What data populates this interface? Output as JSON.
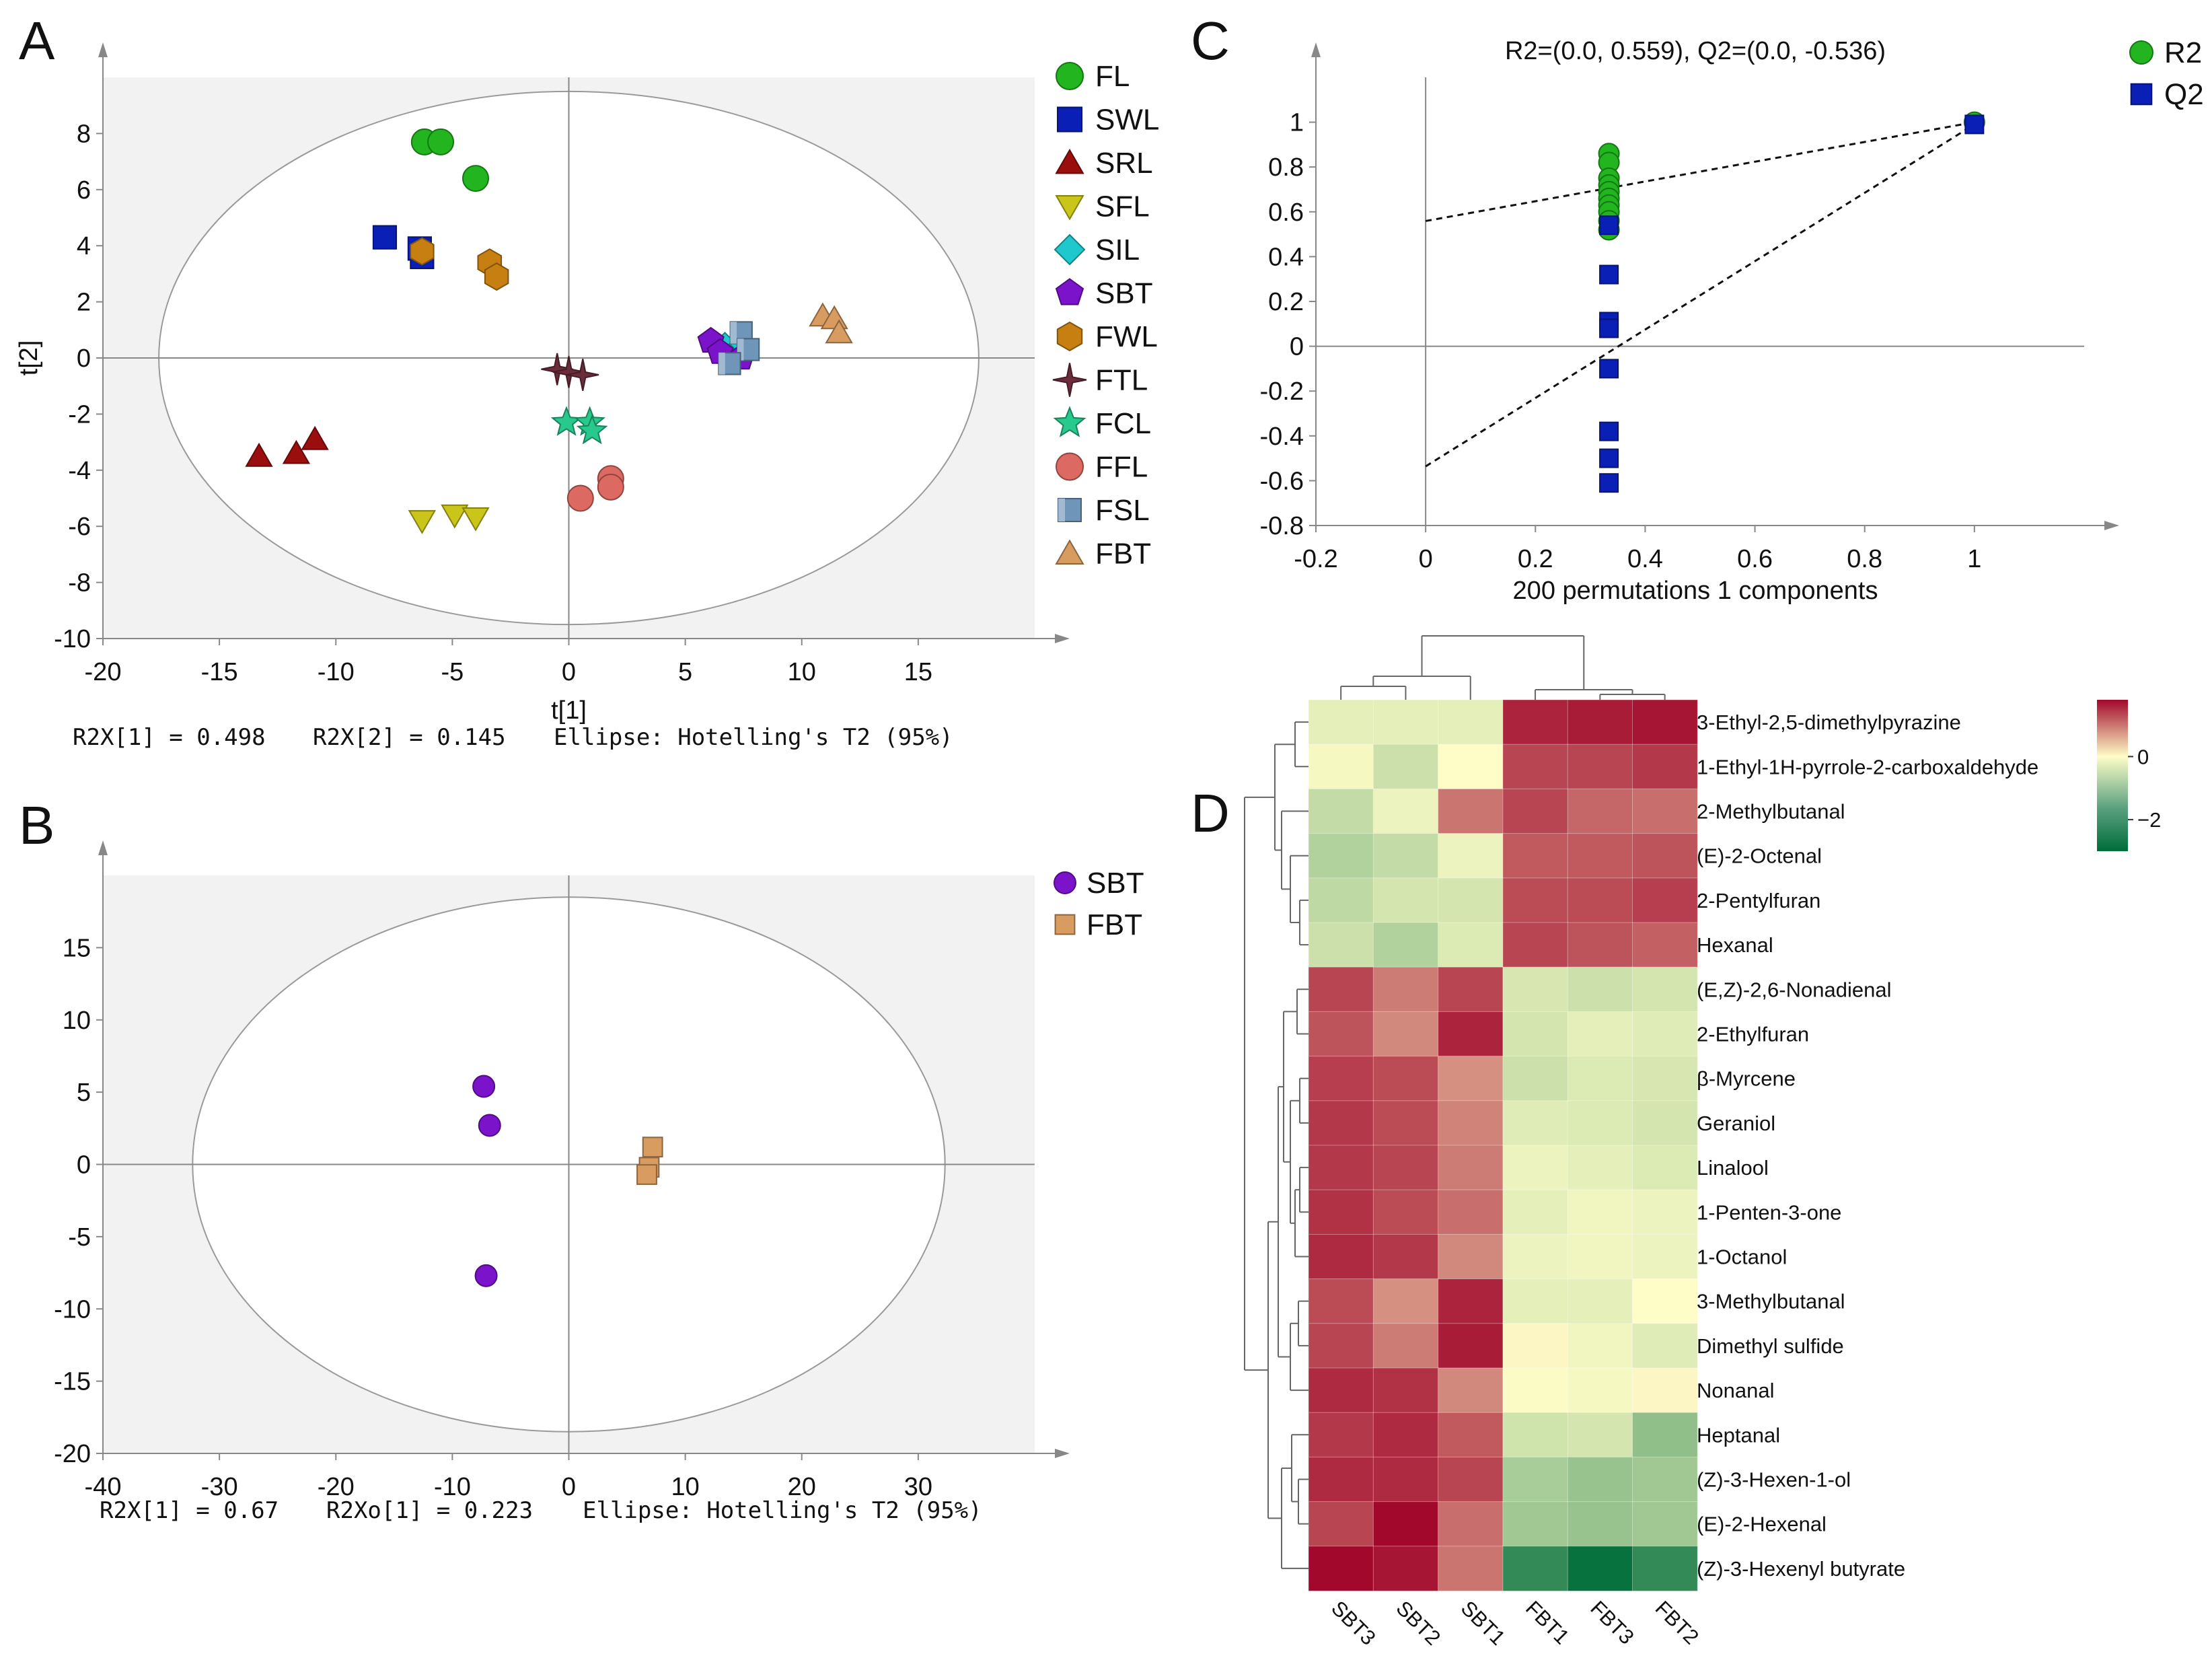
{
  "colors": {
    "FL": "#22b51f",
    "SWL": "#0a1fb5",
    "SRL": "#9b0e0e",
    "SFL": "#c9c51a",
    "SIL": "#1ec8cc",
    "SBT": "#7a13c9",
    "FWL": "#c77f12",
    "FTL": "#6b2c3c",
    "FCL": "#27c98c",
    "FFL": "#dd6a62",
    "FSL": "#6f95b8",
    "FBT": "#d89c61",
    "R2": "#22b51f",
    "Q2": "#0a1fb5",
    "heat_low": "#006d3a",
    "heat_mid": "#fefdc7",
    "heat_high": "#a1082b"
  },
  "chart_data": [
    {
      "panel": "A",
      "type": "scatter",
      "xlabel": "t[1]",
      "ylabel": "t[2]",
      "xlim": [
        -20,
        20
      ],
      "ylim": [
        -10,
        10
      ],
      "xticks": [
        "-20",
        "-15",
        "-10",
        "-5",
        "0",
        "5",
        "10",
        "15"
      ],
      "yticks": [
        "8",
        "6",
        "4",
        "2",
        "0",
        "-2",
        "-4",
        "-6",
        "-8",
        "-10"
      ],
      "ellipse": {
        "rx": 17.6,
        "ry": 9.5
      },
      "caption": {
        "r2x1": "R2X[1] = 0.498",
        "r2x2": "R2X[2] = 0.145",
        "ellipse": "Ellipse: Hotelling's T2 (95%)"
      },
      "legend": [
        "FL",
        "SWL",
        "SRL",
        "SFL",
        "SIL",
        "SBT",
        "FWL",
        "FTL",
        "FCL",
        "FFL",
        "FSL",
        "FBT"
      ],
      "series": [
        {
          "name": "FL",
          "shape": "circle",
          "points": [
            [
              -6.2,
              7.7
            ],
            [
              -5.5,
              7.7
            ],
            [
              -4,
              6.4
            ]
          ]
        },
        {
          "name": "SWL",
          "shape": "square",
          "points": [
            [
              -7.9,
              4.3
            ],
            [
              -6.4,
              3.9
            ],
            [
              -6.3,
              3.6
            ]
          ]
        },
        {
          "name": "SRL",
          "shape": "triangle",
          "points": [
            [
              -13.3,
              -3.5
            ],
            [
              -11.7,
              -3.4
            ],
            [
              -10.9,
              -2.9
            ]
          ]
        },
        {
          "name": "SFL",
          "shape": "tridown",
          "points": [
            [
              -6.3,
              -5.8
            ],
            [
              -4.9,
              -5.6
            ],
            [
              -4.0,
              -5.7
            ]
          ]
        },
        {
          "name": "SIL",
          "shape": "diamond",
          "points": [
            [
              6.7,
              0.4
            ],
            [
              7.2,
              0.2
            ],
            [
              6.9,
              0.0
            ]
          ]
        },
        {
          "name": "SBT",
          "shape": "pentagon",
          "points": [
            [
              6.1,
              0.6
            ],
            [
              6.5,
              0.2
            ],
            [
              7.4,
              0.0
            ]
          ]
        },
        {
          "name": "FWL",
          "shape": "hexagon",
          "points": [
            [
              -6.3,
              3.8
            ],
            [
              -3.4,
              3.4
            ],
            [
              -3.1,
              2.9
            ]
          ]
        },
        {
          "name": "FTL",
          "shape": "star4",
          "points": [
            [
              -0.5,
              -0.4
            ],
            [
              0.0,
              -0.5
            ],
            [
              0.6,
              -0.6
            ]
          ]
        },
        {
          "name": "FCL",
          "shape": "star5",
          "points": [
            [
              -0.1,
              -2.3
            ],
            [
              0.9,
              -2.3
            ],
            [
              1.0,
              -2.6
            ]
          ]
        },
        {
          "name": "FFL",
          "shape": "circle",
          "points": [
            [
              0.5,
              -5.0
            ],
            [
              1.8,
              -4.3
            ],
            [
              1.8,
              -4.6
            ]
          ]
        },
        {
          "name": "FSL",
          "shape": "cube",
          "points": [
            [
              7.4,
              0.9
            ],
            [
              7.7,
              0.3
            ],
            [
              6.9,
              -0.2
            ]
          ]
        },
        {
          "name": "FBT",
          "shape": "triangle",
          "points": [
            [
              10.9,
              1.5
            ],
            [
              11.4,
              1.4
            ],
            [
              11.6,
              0.9
            ]
          ]
        }
      ]
    },
    {
      "panel": "B",
      "type": "scatter",
      "xlim": [
        -40,
        40
      ],
      "ylim": [
        -20,
        20
      ],
      "xticks": [
        "-40",
        "-30",
        "-20",
        "-10",
        "0",
        "10",
        "20",
        "30"
      ],
      "yticks": [
        "15",
        "10",
        "5",
        "0",
        "-5",
        "-10",
        "-15",
        "-20"
      ],
      "ellipse": {
        "rx": 32.3,
        "ry": 18.5
      },
      "caption": {
        "r2x1": "R2X[1] = 0.67",
        "r2xo1": "R2Xo[1] = 0.223",
        "ellipse": "Ellipse: Hotelling's T2 (95%)"
      },
      "legend": [
        "SBT",
        "FBT"
      ],
      "series": [
        {
          "name": "SBT",
          "shape": "circle",
          "points": [
            [
              -7.3,
              5.4
            ],
            [
              -6.8,
              2.7
            ],
            [
              -7.1,
              -7.7
            ]
          ]
        },
        {
          "name": "FBT",
          "shape": "square",
          "points": [
            [
              7.2,
              1.2
            ],
            [
              6.9,
              -0.2
            ],
            [
              6.7,
              -0.7
            ]
          ]
        }
      ]
    },
    {
      "panel": "C",
      "type": "scatter",
      "title": "R2=(0.0, 0.559), Q2=(0.0, -0.536)",
      "xlabel": "200 permutations 1 components",
      "xlim": [
        -0.2,
        1.2
      ],
      "ylim": [
        -0.8,
        1.2
      ],
      "xticks": [
        "-0.2",
        "0",
        "0.2",
        "0.4",
        "0.6",
        "0.8",
        "1"
      ],
      "yticks": [
        "1",
        "0.8",
        "0.6",
        "0.4",
        "0.2",
        "0",
        "-0.2",
        "-0.4",
        "-0.6",
        "-0.8"
      ],
      "legend": [
        "R2",
        "Q2"
      ],
      "series": [
        {
          "name": "R2",
          "shape": "circle",
          "points": [
            [
              0.334,
              0.86
            ],
            [
              0.334,
              0.82
            ],
            [
              0.334,
              0.75
            ],
            [
              0.334,
              0.72
            ],
            [
              0.334,
              0.69
            ],
            [
              0.334,
              0.66
            ],
            [
              0.334,
              0.63
            ],
            [
              0.334,
              0.6
            ],
            [
              0.334,
              0.56
            ],
            [
              0.334,
              0.52
            ],
            [
              1,
              1.0
            ]
          ]
        },
        {
          "name": "Q2",
          "shape": "square",
          "points": [
            [
              0.334,
              0.54
            ],
            [
              0.334,
              0.32
            ],
            [
              0.334,
              0.11
            ],
            [
              0.334,
              0.08
            ],
            [
              0.334,
              -0.1
            ],
            [
              0.334,
              -0.38
            ],
            [
              0.334,
              -0.5
            ],
            [
              0.334,
              -0.61
            ],
            [
              1,
              0.99
            ]
          ]
        }
      ],
      "lines": [
        {
          "name": "R2 intercept",
          "from": [
            0,
            0.559
          ],
          "to": [
            1,
            1.0
          ]
        },
        {
          "name": "Q2 intercept",
          "from": [
            0,
            -0.536
          ],
          "to": [
            1,
            0.99
          ]
        }
      ]
    },
    {
      "panel": "D",
      "type": "heatmap",
      "columns": [
        "SBT3",
        "SBT2",
        "SBT1",
        "FBT1",
        "FBT3",
        "FBT2"
      ],
      "rows": [
        "3-Ethyl-2,5-dimethylpyrazine",
        "1-Ethyl-1H-pyrrole-2-carboxaldehyde",
        "2-Methylbutanal",
        "(E)-2-Octenal",
        "2-Pentylfuran",
        "Hexanal",
        "(E,Z)-2,6-Nonadienal",
        "2-Ethylfuran",
        "β-Myrcene",
        "Geraniol",
        "Linalool",
        "1-Penten-3-one",
        "1-Octanol",
        "3-Methylbutanal",
        "Dimethyl sulfide",
        "Nonanal",
        "Heptanal",
        "(Z)-3-Hexen-1-ol",
        "(E)-2-Hexenal",
        "(Z)-3-Hexenyl butyrate"
      ],
      "values": [
        [
          -0.3,
          -0.3,
          -0.3,
          1.6,
          1.65,
          1.7
        ],
        [
          -0.1,
          -0.6,
          0.0,
          1.35,
          1.35,
          1.45
        ],
        [
          -0.7,
          -0.2,
          1.0,
          1.35,
          1.1,
          1.05
        ],
        [
          -0.9,
          -0.7,
          -0.2,
          1.2,
          1.2,
          1.25
        ],
        [
          -0.75,
          -0.5,
          -0.5,
          1.3,
          1.3,
          1.4
        ],
        [
          -0.6,
          -0.9,
          -0.4,
          1.35,
          1.25,
          1.15
        ],
        [
          1.35,
          0.95,
          1.35,
          -0.45,
          -0.6,
          -0.5
        ],
        [
          1.25,
          0.85,
          1.6,
          -0.5,
          -0.3,
          -0.35
        ],
        [
          1.4,
          1.3,
          0.8,
          -0.6,
          -0.4,
          -0.45
        ],
        [
          1.45,
          1.3,
          0.9,
          -0.35,
          -0.4,
          -0.5
        ],
        [
          1.45,
          1.35,
          0.95,
          -0.2,
          -0.3,
          -0.4
        ],
        [
          1.5,
          1.3,
          1.05,
          -0.3,
          -0.15,
          -0.2
        ],
        [
          1.55,
          1.45,
          0.85,
          -0.2,
          -0.15,
          -0.2
        ],
        [
          1.3,
          0.8,
          1.6,
          -0.3,
          -0.3,
          0.0
        ],
        [
          1.35,
          0.95,
          1.65,
          0.05,
          -0.15,
          -0.35
        ],
        [
          1.55,
          1.5,
          0.85,
          -0.05,
          -0.1,
          0.05
        ],
        [
          1.45,
          1.55,
          1.2,
          -0.55,
          -0.5,
          -1.3
        ],
        [
          1.55,
          1.55,
          1.35,
          -1.0,
          -1.2,
          -1.1
        ],
        [
          1.35,
          1.95,
          1.05,
          -1.1,
          -1.2,
          -1.1
        ],
        [
          1.9,
          1.7,
          1.0,
          -2.4,
          -2.9,
          -2.4
        ]
      ],
      "colorbar": {
        "range": [
          -3,
          1.8
        ],
        "ticks": [
          "0",
          "−2"
        ]
      }
    }
  ],
  "panels": {
    "a": "A",
    "b": "B",
    "c": "C",
    "d": "D"
  }
}
